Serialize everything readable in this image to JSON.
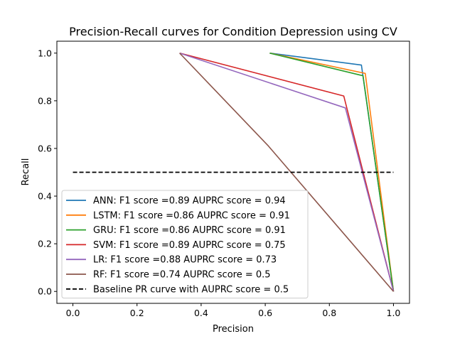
{
  "chart_data": {
    "type": "line",
    "title": "Precision-Recall curves for Condition Depression using CV",
    "xlabel": "Precision",
    "ylabel": "Recall",
    "xlim": [
      -0.05,
      1.05
    ],
    "ylim": [
      -0.05,
      1.05
    ],
    "xticks": [
      0.0,
      0.2,
      0.4,
      0.6,
      0.8,
      1.0
    ],
    "xtick_labels": [
      "0.0",
      "0.2",
      "0.4",
      "0.6",
      "0.8",
      "1.0"
    ],
    "yticks": [
      0.0,
      0.2,
      0.4,
      0.6,
      0.8,
      1.0
    ],
    "ytick_labels": [
      "0.0",
      "0.2",
      "0.4",
      "0.6",
      "0.8",
      "1.0"
    ],
    "legend_position": "lower-left",
    "series": [
      {
        "name": "ANN: F1 score =0.89 AUPRC score = 0.94",
        "color": "#1f77b4",
        "style": "solid",
        "x": [
          0.614,
          0.9,
          1.0
        ],
        "y": [
          1.0,
          0.95,
          0.0
        ]
      },
      {
        "name": "LSTM: F1 score =0.86 AUPRC score = 0.91",
        "color": "#ff7f0e",
        "style": "solid",
        "x": [
          0.614,
          0.912,
          1.0
        ],
        "y": [
          1.0,
          0.915,
          0.0
        ]
      },
      {
        "name": "GRU: F1 score =0.86 AUPRC score = 0.91",
        "color": "#2ca02c",
        "style": "solid",
        "x": [
          0.614,
          0.905,
          1.0
        ],
        "y": [
          1.0,
          0.905,
          0.0
        ]
      },
      {
        "name": "SVM: F1 score =0.89 AUPRC score = 0.75",
        "color": "#d62728",
        "style": "solid",
        "x": [
          0.333,
          0.845,
          1.0
        ],
        "y": [
          1.0,
          0.82,
          0.0
        ]
      },
      {
        "name": "LR: F1 score =0.88 AUPRC score = 0.73",
        "color": "#9467bd",
        "style": "solid",
        "x": [
          0.333,
          0.85,
          1.0
        ],
        "y": [
          1.0,
          0.77,
          0.0
        ]
      },
      {
        "name": "RF: F1 score =0.74 AUPRC score = 0.5",
        "color": "#8c564b",
        "style": "solid",
        "x": [
          0.333,
          0.61,
          1.0
        ],
        "y": [
          1.0,
          0.61,
          0.0
        ]
      },
      {
        "name": "Baseline PR curve with AUPRC score = 0.5",
        "color": "#000000",
        "style": "dashed",
        "x": [
          0.0,
          1.0
        ],
        "y": [
          0.5,
          0.5
        ]
      }
    ]
  }
}
